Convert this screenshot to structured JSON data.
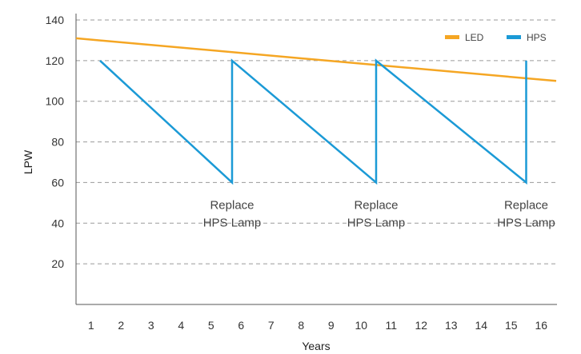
{
  "chart_data": {
    "type": "line",
    "title": "",
    "xlabel": "Years",
    "ylabel": "LPW",
    "xlim": [
      0.5,
      16.5
    ],
    "ylim": [
      0,
      140
    ],
    "x_ticks": [
      1,
      2,
      3,
      4,
      5,
      6,
      7,
      8,
      9,
      10,
      11,
      12,
      13,
      14,
      15,
      16
    ],
    "y_ticks": [
      20,
      40,
      60,
      80,
      100,
      120,
      140
    ],
    "grid": "horizontal dashed",
    "legend_position": "top-right",
    "series": [
      {
        "name": "LED",
        "color": "#f5a623",
        "points": [
          [
            0.5,
            131
          ],
          [
            16.5,
            110
          ]
        ]
      },
      {
        "name": "HPS",
        "color": "#1b9ad6",
        "points": [
          [
            1.3,
            120
          ],
          [
            5.7,
            60
          ],
          [
            5.7,
            120
          ],
          [
            10.5,
            60
          ],
          [
            10.5,
            120
          ],
          [
            15.5,
            60
          ],
          [
            15.5,
            120
          ]
        ]
      }
    ],
    "annotations": [
      {
        "x": 5.7,
        "y": 43,
        "lines": [
          "Replace",
          "HPS Lamp"
        ]
      },
      {
        "x": 10.5,
        "y": 43,
        "lines": [
          "Replace",
          "HPS Lamp"
        ]
      },
      {
        "x": 15.5,
        "y": 43,
        "lines": [
          "Replace",
          "HPS Lamp"
        ]
      }
    ]
  }
}
